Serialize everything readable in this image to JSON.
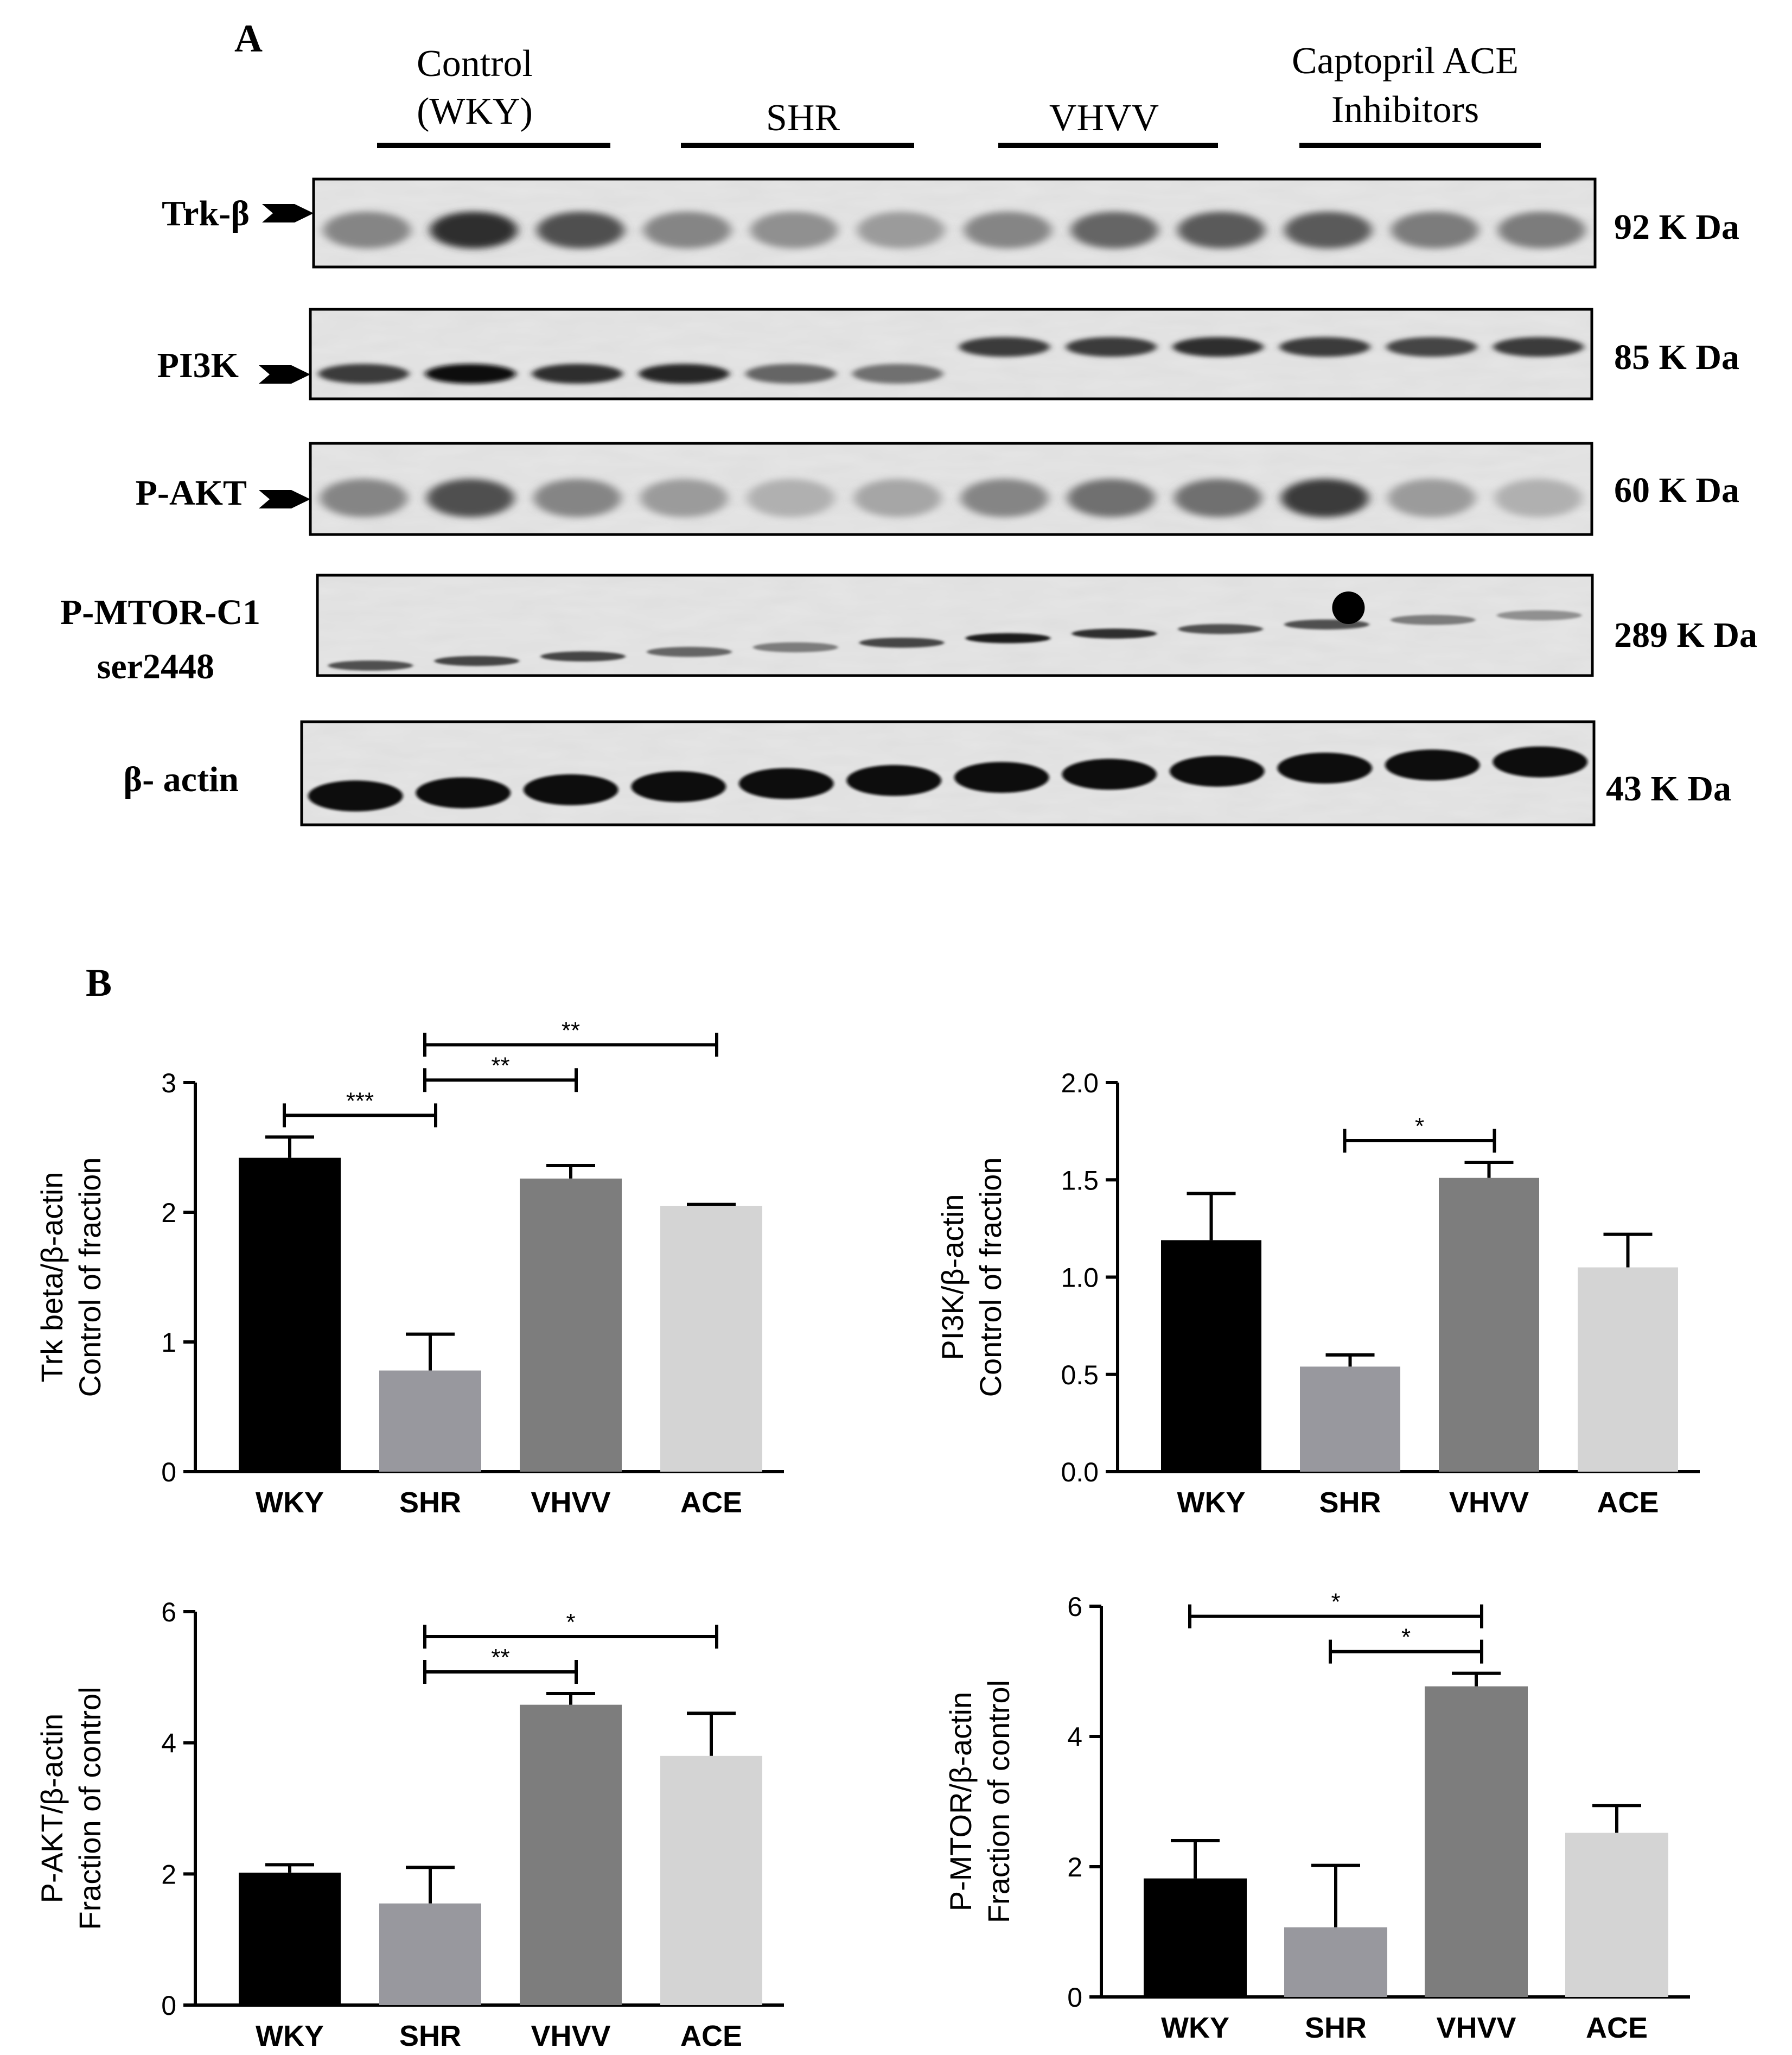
{
  "panel_a": {
    "label": "A",
    "groups": [
      {
        "line1": "Control",
        "line2": "(WKY)"
      },
      {
        "line1": "SHR",
        "line2": ""
      },
      {
        "line1": "VHVV",
        "line2": ""
      },
      {
        "line1": "Captopril ACE",
        "line2": "Inhibitors"
      }
    ],
    "blots": [
      {
        "label": "Trk-β",
        "label2": "",
        "size": "92 K Da"
      },
      {
        "label": "PI3K",
        "label2": "",
        "size": "85 K Da"
      },
      {
        "label": "P-AKT",
        "label2": "",
        "size": "60 K Da"
      },
      {
        "label": "P-MTOR-C1",
        "label2": "ser2448",
        "size": "289 K Da"
      },
      {
        "label": "β- actin",
        "label2": "",
        "size": "43 K Da"
      }
    ],
    "band_intensity": [
      [
        0.45,
        0.85,
        0.7,
        0.45,
        0.4,
        0.35,
        0.45,
        0.6,
        0.65,
        0.65,
        0.5,
        0.5
      ],
      [
        0.8,
        1.0,
        0.85,
        0.9,
        0.6,
        0.55,
        0.8,
        0.8,
        0.85,
        0.8,
        0.75,
        0.8
      ],
      [
        0.45,
        0.7,
        0.45,
        0.35,
        0.25,
        0.3,
        0.45,
        0.55,
        0.55,
        0.8,
        0.35,
        0.25
      ],
      [
        0.7,
        0.75,
        0.75,
        0.6,
        0.5,
        0.75,
        0.95,
        0.85,
        0.7,
        0.7,
        0.5,
        0.4
      ],
      [
        1,
        1,
        1,
        1,
        1,
        1,
        1,
        1,
        1,
        1,
        1,
        1
      ]
    ]
  },
  "panel_b": {
    "label": "B"
  },
  "colors": {
    "WKY": "#000000",
    "SHR": "#98989e",
    "VHVV": "#7d7d7d",
    "ACE": "#d4d4d4"
  },
  "chart_data": [
    {
      "type": "bar",
      "categories": [
        "WKY",
        "SHR",
        "VHVV",
        "ACE"
      ],
      "values": [
        2.42,
        0.78,
        2.26,
        2.05
      ],
      "errors": [
        0.16,
        0.28,
        0.1,
        0.01
      ],
      "ylabel_line1": "Trk beta/β-actin",
      "ylabel_line2": "Control of fraction",
      "ylim": [
        0,
        3
      ],
      "yticks": [
        0,
        1,
        2,
        3
      ],
      "ytick_labels": [
        "0",
        "1",
        "2",
        "3"
      ],
      "significance": [
        {
          "from": 0,
          "to": 1,
          "label": "***"
        },
        {
          "from": 1,
          "to": 2,
          "label": "**"
        },
        {
          "from": 1,
          "to": 3,
          "label": "**"
        }
      ]
    },
    {
      "type": "bar",
      "categories": [
        "WKY",
        "SHR",
        "VHVV",
        "ACE"
      ],
      "values": [
        1.19,
        0.54,
        1.51,
        1.05
      ],
      "errors": [
        0.24,
        0.06,
        0.08,
        0.17
      ],
      "ylabel_line1": "PI3K/β-actin",
      "ylabel_line2": "Control of fraction",
      "ylim": [
        0,
        2
      ],
      "yticks": [
        0,
        0.5,
        1,
        1.5,
        2
      ],
      "ytick_labels": [
        "0.0",
        "0.5",
        "1.0",
        "1.5",
        "2.0"
      ],
      "significance": [
        {
          "from": 1,
          "to": 2,
          "label": "*"
        }
      ]
    },
    {
      "type": "bar",
      "categories": [
        "WKY",
        "SHR",
        "VHVV",
        "ACE"
      ],
      "values": [
        2.02,
        1.55,
        4.58,
        3.8
      ],
      "errors": [
        0.12,
        0.55,
        0.17,
        0.65
      ],
      "ylabel_line1": "P-AKT/β-actin",
      "ylabel_line2": "Fraction of control",
      "ylim": [
        0,
        6
      ],
      "yticks": [
        0,
        2,
        4,
        6
      ],
      "ytick_labels": [
        "0",
        "2",
        "4",
        "6"
      ],
      "significance": [
        {
          "from": 1,
          "to": 2,
          "label": "**"
        },
        {
          "from": 1,
          "to": 3,
          "label": "*"
        }
      ]
    },
    {
      "type": "bar",
      "categories": [
        "WKY",
        "SHR",
        "VHVV",
        "ACE"
      ],
      "values": [
        1.82,
        1.07,
        4.77,
        2.52
      ],
      "errors": [
        0.58,
        0.95,
        0.2,
        0.42
      ],
      "ylabel_line1": "P-MTOR/β-actin",
      "ylabel_line2": "Fraction of control",
      "ylim": [
        0,
        6
      ],
      "yticks": [
        0,
        2,
        4,
        6
      ],
      "ytick_labels": [
        "0",
        "2",
        "4",
        "6"
      ],
      "significance": [
        {
          "from": 0,
          "to": 2,
          "label": "*"
        },
        {
          "from": 1,
          "to": 2,
          "label": "*"
        }
      ]
    }
  ]
}
